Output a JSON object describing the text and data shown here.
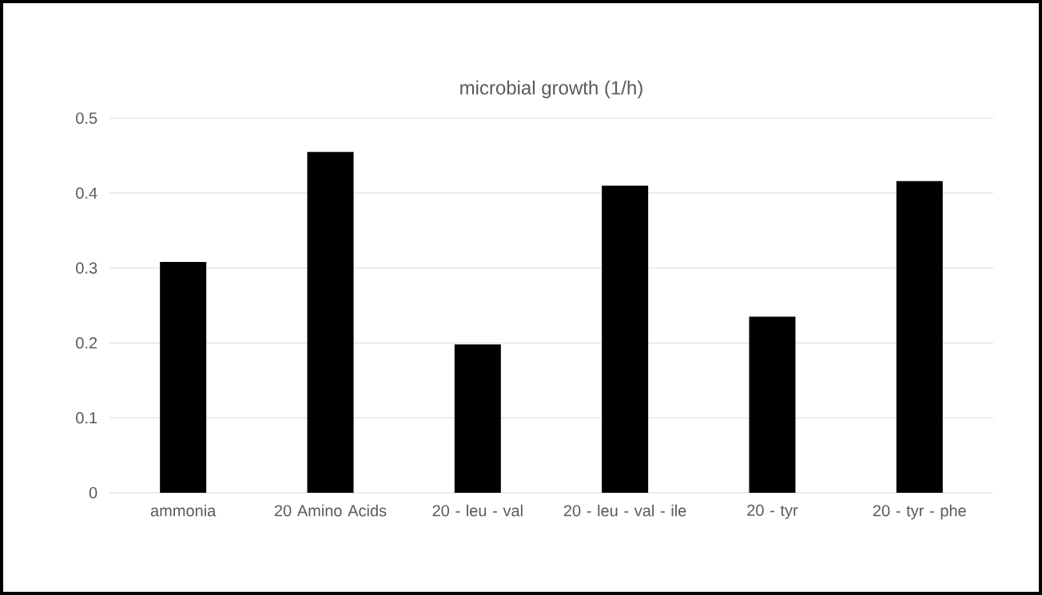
{
  "chart_data": {
    "type": "bar",
    "title": "microbial growth (1/h)",
    "categories": [
      "ammonia",
      "20 Amino Acids",
      "20 - leu - val",
      "20 - leu - val - ile",
      "20 - tyr",
      "20 - tyr - phe"
    ],
    "values": [
      0.308,
      0.455,
      0.198,
      0.41,
      0.235,
      0.416
    ],
    "color": "#000000",
    "ylim": [
      0,
      0.5
    ],
    "yticks": [
      0,
      0.1,
      0.2,
      0.3,
      0.4,
      0.5
    ],
    "grid": "y"
  }
}
